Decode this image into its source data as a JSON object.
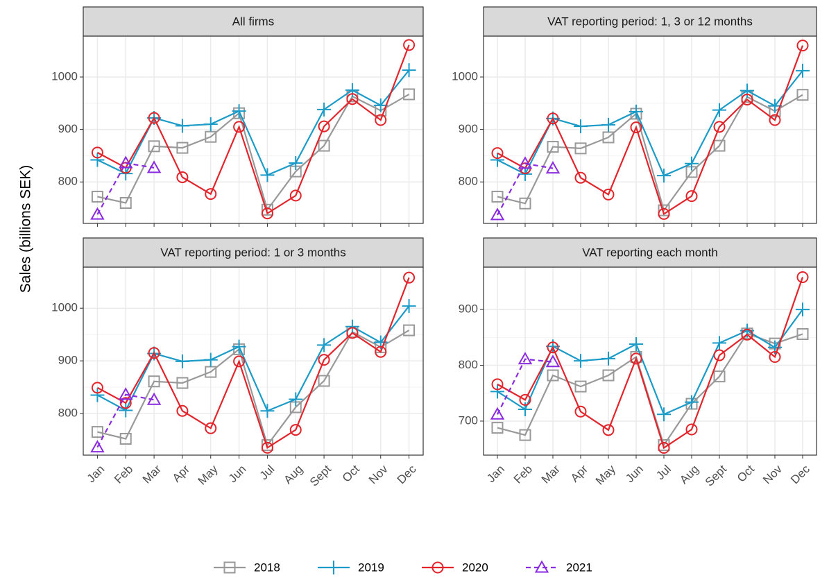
{
  "y_label": "Sales (billions SEK)",
  "chart_data": [
    {
      "type": "line",
      "title": "All firms",
      "categories": [
        "Jan",
        "Feb",
        "Mar",
        "Apr",
        "May",
        "Jun",
        "Jul",
        "Aug",
        "Sept",
        "Oct",
        "Nov",
        "Dec"
      ],
      "ylim": [
        721,
        1078
      ],
      "yticks": [
        800,
        900,
        1000
      ],
      "grid": true,
      "series": [
        {
          "name": "2018",
          "color": "#999999",
          "marker": "square",
          "dashed": false,
          "values": [
            772,
            760,
            868,
            865,
            886,
            931,
            747,
            820,
            869,
            963,
            936,
            967
          ]
        },
        {
          "name": "2019",
          "color": "#1b9bc8",
          "marker": "plus",
          "dashed": false,
          "values": [
            842,
            816,
            922,
            907,
            910,
            935,
            813,
            836,
            938,
            975,
            946,
            1013
          ]
        },
        {
          "name": "2020",
          "color": "#e3242b",
          "marker": "circle",
          "dashed": false,
          "values": [
            856,
            827,
            922,
            809,
            777,
            905,
            740,
            774,
            906,
            958,
            918,
            1061
          ]
        },
        {
          "name": "2021",
          "color": "#8a2be2",
          "marker": "triangle",
          "dashed": true,
          "values": [
            738,
            836,
            827,
            null,
            null,
            null,
            null,
            null,
            null,
            null,
            null,
            null
          ]
        }
      ]
    },
    {
      "type": "line",
      "title": "VAT reporting period: 1, 3 or 12 months",
      "categories": [
        "Jan",
        "Feb",
        "Mar",
        "Apr",
        "May",
        "Jun",
        "Jul",
        "Aug",
        "Sept",
        "Oct",
        "Nov",
        "Dec"
      ],
      "ylim": [
        721,
        1078
      ],
      "yticks": [
        800,
        900,
        1000
      ],
      "grid": true,
      "series": [
        {
          "name": "2018",
          "color": "#999999",
          "marker": "square",
          "dashed": false,
          "values": [
            772,
            759,
            867,
            864,
            885,
            930,
            746,
            819,
            869,
            962,
            935,
            966
          ]
        },
        {
          "name": "2019",
          "color": "#1b9bc8",
          "marker": "plus",
          "dashed": false,
          "values": [
            842,
            815,
            921,
            906,
            909,
            934,
            812,
            835,
            937,
            974,
            945,
            1012
          ]
        },
        {
          "name": "2020",
          "color": "#e3242b",
          "marker": "circle",
          "dashed": false,
          "values": [
            855,
            826,
            921,
            808,
            776,
            904,
            739,
            773,
            905,
            957,
            918,
            1060
          ]
        },
        {
          "name": "2021",
          "color": "#8a2be2",
          "marker": "triangle",
          "dashed": true,
          "values": [
            737,
            835,
            826,
            null,
            null,
            null,
            null,
            null,
            null,
            null,
            null,
            null
          ]
        }
      ]
    },
    {
      "type": "line",
      "title": "VAT reporting period: 1 or 3 months",
      "categories": [
        "Jan",
        "Feb",
        "Mar",
        "Apr",
        "May",
        "Jun",
        "Jul",
        "Aug",
        "Sept",
        "Oct",
        "Nov",
        "Dec"
      ],
      "ylim": [
        721,
        1078
      ],
      "yticks": [
        800,
        900,
        1000
      ],
      "grid": true,
      "series": [
        {
          "name": "2018",
          "color": "#999999",
          "marker": "square",
          "dashed": false,
          "values": [
            765,
            752,
            861,
            858,
            879,
            922,
            740,
            812,
            862,
            955,
            926,
            958
          ]
        },
        {
          "name": "2019",
          "color": "#1b9bc8",
          "marker": "plus",
          "dashed": false,
          "values": [
            835,
            806,
            914,
            899,
            902,
            927,
            805,
            827,
            930,
            965,
            935,
            1004
          ]
        },
        {
          "name": "2020",
          "color": "#e3242b",
          "marker": "circle",
          "dashed": false,
          "values": [
            849,
            820,
            915,
            805,
            772,
            899,
            735,
            769,
            902,
            953,
            917,
            1058
          ]
        },
        {
          "name": "2021",
          "color": "#8a2be2",
          "marker": "triangle",
          "dashed": true,
          "values": [
            736,
            836,
            826,
            null,
            null,
            null,
            null,
            null,
            null,
            null,
            null,
            null
          ]
        }
      ]
    },
    {
      "type": "line",
      "title": "VAT reporting each month",
      "categories": [
        "Jan",
        "Feb",
        "Mar",
        "Apr",
        "May",
        "Jun",
        "Jul",
        "Aug",
        "Sept",
        "Oct",
        "Nov",
        "Dec"
      ],
      "ylim": [
        639,
        976
      ],
      "yticks": [
        700,
        800,
        900
      ],
      "grid": true,
      "series": [
        {
          "name": "2018",
          "color": "#999999",
          "marker": "square",
          "dashed": false,
          "values": [
            688,
            675,
            782,
            762,
            782,
            815,
            657,
            731,
            780,
            857,
            839,
            856
          ]
        },
        {
          "name": "2019",
          "color": "#1b9bc8",
          "marker": "plus",
          "dashed": false,
          "values": [
            753,
            721,
            834,
            808,
            812,
            838,
            712,
            734,
            840,
            862,
            832,
            900
          ]
        },
        {
          "name": "2020",
          "color": "#e3242b",
          "marker": "circle",
          "dashed": false,
          "values": [
            766,
            738,
            832,
            717,
            684,
            812,
            652,
            685,
            818,
            855,
            815,
            958
          ]
        },
        {
          "name": "2021",
          "color": "#8a2be2",
          "marker": "triangle",
          "dashed": true,
          "values": [
            712,
            811,
            806,
            null,
            null,
            null,
            null,
            null,
            null,
            null,
            null,
            null
          ]
        }
      ]
    }
  ]
}
